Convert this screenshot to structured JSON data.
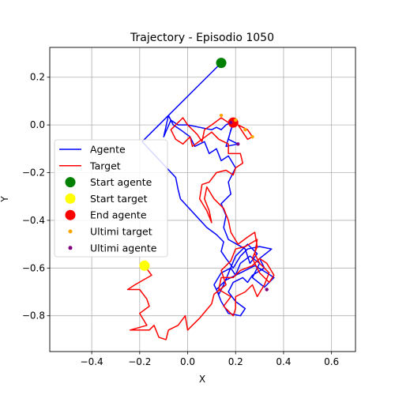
{
  "chart_data": {
    "type": "line",
    "title": "Trajectory - Episodio 1050",
    "xlabel": "X",
    "ylabel": "Y",
    "xlim": [
      -0.575,
      0.7
    ],
    "ylim": [
      -0.95,
      0.325
    ],
    "grid": true,
    "x_ticks": [
      {
        "value": -0.4,
        "label": "−0.4"
      },
      {
        "value": -0.2,
        "label": "−0.2"
      },
      {
        "value": 0.0,
        "label": "0.0"
      },
      {
        "value": 0.2,
        "label": "0.2"
      },
      {
        "value": 0.4,
        "label": "0.4"
      },
      {
        "value": 0.6,
        "label": "0.6"
      }
    ],
    "y_ticks": [
      {
        "value": 0.2,
        "label": "0.2"
      },
      {
        "value": 0.0,
        "label": "0.0"
      },
      {
        "value": -0.2,
        "label": "−0.2"
      },
      {
        "value": -0.4,
        "label": "−0.4"
      },
      {
        "value": -0.6,
        "label": "−0.6"
      },
      {
        "value": -0.8,
        "label": "−0.8"
      }
    ],
    "legend_position": "center-left",
    "series": [
      {
        "name": "Agente",
        "kind": "line",
        "color": "#0000ff",
        "points": [
          [
            0.14,
            0.26
          ],
          [
            -0.19,
            -0.07
          ],
          [
            -0.05,
            -0.22
          ],
          [
            -0.04,
            -0.27
          ],
          [
            -0.03,
            -0.31
          ],
          [
            0.08,
            -0.43
          ],
          [
            0.12,
            -0.46
          ],
          [
            0.15,
            -0.49
          ],
          [
            0.14,
            -0.53
          ],
          [
            0.16,
            -0.56
          ],
          [
            0.19,
            -0.6
          ],
          [
            0.22,
            -0.55
          ],
          [
            0.25,
            -0.52
          ],
          [
            0.3,
            -0.51
          ],
          [
            0.35,
            -0.52
          ],
          [
            0.3,
            -0.56
          ],
          [
            0.32,
            -0.6
          ],
          [
            0.27,
            -0.63
          ],
          [
            0.25,
            -0.66
          ],
          [
            0.23,
            -0.64
          ],
          [
            0.19,
            -0.66
          ],
          [
            0.17,
            -0.7
          ],
          [
            0.2,
            -0.74
          ],
          [
            0.24,
            -0.77
          ],
          [
            0.22,
            -0.8
          ],
          [
            0.17,
            -0.79
          ],
          [
            0.14,
            -0.74
          ],
          [
            0.12,
            -0.69
          ],
          [
            0.16,
            -0.65
          ],
          [
            0.22,
            -0.62
          ],
          [
            0.28,
            -0.59
          ],
          [
            0.33,
            -0.62
          ],
          [
            0.36,
            -0.64
          ],
          [
            0.32,
            -0.68
          ],
          [
            0.27,
            -0.64
          ],
          [
            0.3,
            -0.58
          ],
          [
            0.26,
            -0.55
          ],
          [
            0.22,
            -0.58
          ],
          [
            0.2,
            -0.63
          ],
          [
            0.18,
            -0.6
          ],
          [
            0.14,
            -0.62
          ],
          [
            0.11,
            -0.67
          ],
          [
            0.13,
            -0.71
          ],
          [
            0.15,
            -0.67
          ],
          [
            0.2,
            -0.55
          ],
          [
            0.25,
            -0.5
          ],
          [
            0.29,
            -0.54
          ],
          [
            0.26,
            -0.58
          ],
          [
            0.24,
            -0.52
          ],
          [
            0.17,
            -0.48
          ],
          [
            0.15,
            -0.43
          ],
          [
            0.16,
            -0.38
          ],
          [
            0.14,
            -0.33
          ],
          [
            0.18,
            -0.29
          ],
          [
            0.17,
            -0.24
          ],
          [
            0.2,
            -0.18
          ],
          [
            0.17,
            -0.13
          ],
          [
            0.14,
            -0.15
          ],
          [
            0.12,
            -0.1
          ],
          [
            0.09,
            -0.12
          ],
          [
            0.07,
            -0.07
          ],
          [
            0.03,
            -0.09
          ],
          [
            0.01,
            -0.05
          ],
          [
            -0.03,
            -0.02
          ],
          [
            -0.06,
            0.0
          ],
          [
            -0.08,
            0.04
          ],
          [
            -0.1,
            -0.05
          ],
          [
            -0.07,
            0.02
          ],
          [
            -0.04,
            0.0
          ],
          [
            0.0,
            0.0
          ],
          [
            0.05,
            -0.01
          ],
          [
            0.1,
            -0.02
          ],
          [
            0.12,
            -0.01
          ],
          [
            0.14,
            -0.02
          ],
          [
            0.16,
            0.0
          ],
          [
            0.2,
            0.02
          ],
          [
            0.18,
            -0.02
          ],
          [
            0.17,
            -0.06
          ],
          [
            0.21,
            -0.08
          ],
          [
            0.16,
            -0.09
          ],
          [
            0.19,
            0.01
          ]
        ]
      },
      {
        "name": "Target",
        "kind": "line",
        "color": "#ff0000",
        "points": [
          [
            -0.18,
            -0.59
          ],
          [
            -0.15,
            -0.63
          ],
          [
            -0.22,
            -0.67
          ],
          [
            -0.25,
            -0.69
          ],
          [
            -0.2,
            -0.69
          ],
          [
            -0.17,
            -0.73
          ],
          [
            -0.16,
            -0.76
          ],
          [
            -0.2,
            -0.79
          ],
          [
            -0.17,
            -0.84
          ],
          [
            -0.24,
            -0.86
          ],
          [
            -0.16,
            -0.86
          ],
          [
            -0.14,
            -0.84
          ],
          [
            -0.12,
            -0.89
          ],
          [
            -0.09,
            -0.9
          ],
          [
            -0.08,
            -0.86
          ],
          [
            -0.04,
            -0.84
          ],
          [
            -0.01,
            -0.8
          ],
          [
            0.0,
            -0.86
          ],
          [
            0.05,
            -0.81
          ],
          [
            0.1,
            -0.75
          ],
          [
            0.11,
            -0.71
          ],
          [
            0.16,
            -0.67
          ],
          [
            0.14,
            -0.61
          ],
          [
            0.18,
            -0.57
          ],
          [
            0.2,
            -0.52
          ],
          [
            0.24,
            -0.51
          ],
          [
            0.29,
            -0.48
          ],
          [
            0.28,
            -0.54
          ],
          [
            0.3,
            -0.58
          ],
          [
            0.34,
            -0.62
          ],
          [
            0.32,
            -0.67
          ],
          [
            0.29,
            -0.72
          ],
          [
            0.27,
            -0.67
          ],
          [
            0.24,
            -0.7
          ],
          [
            0.2,
            -0.72
          ],
          [
            0.2,
            -0.77
          ],
          [
            0.19,
            -0.8
          ],
          [
            0.15,
            -0.76
          ],
          [
            0.18,
            -0.72
          ],
          [
            0.13,
            -0.69
          ],
          [
            0.14,
            -0.64
          ],
          [
            0.19,
            -0.64
          ],
          [
            0.22,
            -0.61
          ],
          [
            0.27,
            -0.59
          ],
          [
            0.3,
            -0.56
          ],
          [
            0.33,
            -0.58
          ],
          [
            0.36,
            -0.63
          ],
          [
            0.34,
            -0.66
          ],
          [
            0.3,
            -0.62
          ],
          [
            0.27,
            -0.56
          ],
          [
            0.29,
            -0.51
          ],
          [
            0.28,
            -0.45
          ],
          [
            0.25,
            -0.47
          ],
          [
            0.21,
            -0.5
          ],
          [
            0.18,
            -0.45
          ],
          [
            0.17,
            -0.4
          ],
          [
            0.15,
            -0.35
          ],
          [
            0.11,
            -0.31
          ],
          [
            0.08,
            -0.26
          ],
          [
            0.07,
            -0.31
          ],
          [
            0.09,
            -0.36
          ],
          [
            0.1,
            -0.41
          ],
          [
            0.08,
            -0.36
          ],
          [
            0.05,
            -0.31
          ],
          [
            0.06,
            -0.25
          ],
          [
            0.09,
            -0.24
          ],
          [
            0.12,
            -0.2
          ],
          [
            0.16,
            -0.19
          ],
          [
            0.19,
            -0.21
          ],
          [
            0.2,
            -0.18
          ],
          [
            0.23,
            -0.16
          ],
          [
            0.22,
            -0.12
          ],
          [
            0.17,
            -0.12
          ],
          [
            0.17,
            -0.08
          ],
          [
            0.13,
            -0.06
          ],
          [
            0.1,
            -0.03
          ],
          [
            0.06,
            -0.06
          ],
          [
            0.02,
            -0.09
          ],
          [
            0.01,
            -0.05
          ],
          [
            -0.02,
            -0.08
          ],
          [
            -0.05,
            -0.06
          ],
          [
            -0.07,
            -0.02
          ],
          [
            -0.05,
            0.0
          ],
          [
            -0.02,
            0.03
          ],
          [
            0.0,
            0.0
          ],
          [
            0.04,
            -0.04
          ],
          [
            0.06,
            -0.07
          ],
          [
            0.07,
            -0.02
          ],
          [
            0.1,
            0.0
          ],
          [
            0.14,
            0.03
          ],
          [
            0.17,
            0.01
          ],
          [
            0.19,
            0.02
          ],
          [
            0.21,
            0.0
          ],
          [
            0.23,
            -0.03
          ],
          [
            0.25,
            -0.06
          ],
          [
            0.27,
            -0.05
          ],
          [
            0.25,
            -0.02
          ],
          [
            0.21,
            0.0
          ]
        ]
      },
      {
        "name": "Start agente",
        "kind": "marker",
        "color": "#008000",
        "x": 0.14,
        "y": 0.26
      },
      {
        "name": "Start target",
        "kind": "marker",
        "color": "#ffff00",
        "x": -0.18,
        "y": -0.59
      },
      {
        "name": "End agente",
        "kind": "marker",
        "color": "#ff0000",
        "x": 0.19,
        "y": 0.01
      },
      {
        "name": "Ultimi target",
        "kind": "scatter",
        "color": "#ffa500",
        "points": [
          [
            0.14,
            0.04
          ],
          [
            0.2,
            0.02
          ],
          [
            0.27,
            -0.05
          ],
          [
            0.24,
            -0.02
          ]
        ]
      },
      {
        "name": "Ultimi agente",
        "kind": "scatter",
        "color": "#800080",
        "points": [
          [
            0.18,
            0.01
          ],
          [
            0.21,
            -0.08
          ],
          [
            0.33,
            -0.69
          ]
        ]
      }
    ]
  }
}
